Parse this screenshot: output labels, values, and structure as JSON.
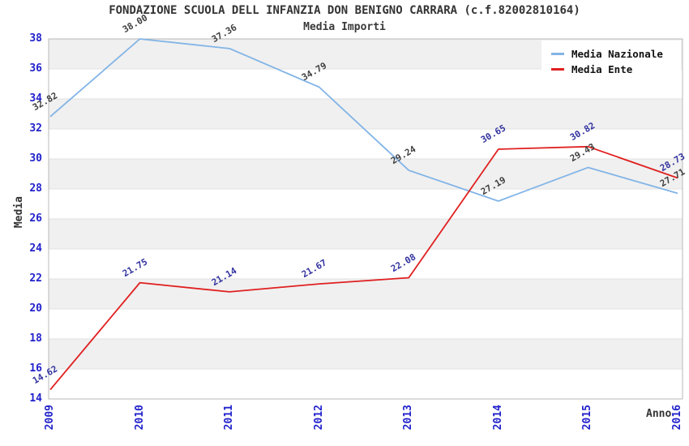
{
  "header": {
    "title": "FONDAZIONE SCUOLA DELL INFANZIA DON BENIGNO CARRARA (c.f.82002810164)",
    "subtitle": "Media Importi"
  },
  "colors": {
    "background": "#ffffff",
    "band": "#f0f0f0",
    "gridline": "#e2e2e2",
    "plot_border": "#b8b8b8",
    "axis_tick_label": "#2222cc",
    "series_nazionale": "#82b4e6",
    "series_ente": "#e02020",
    "label_nazionale": "#404040",
    "label_ente": "#3333a0"
  },
  "chart_data": {
    "type": "line",
    "title": "FONDAZIONE SCUOLA DELL INFANZIA DON BENIGNO CARRARA (c.f.82002810164)",
    "subtitle": "Media Importi",
    "xlabel": "Anno",
    "ylabel": "Media",
    "categories": [
      "2009",
      "2010",
      "2011",
      "2012",
      "2013",
      "2014",
      "2015",
      "2016"
    ],
    "series": [
      {
        "name": "Media Nazionale",
        "color": "#82b4e6",
        "label_color": "#404040",
        "values": [
          32.82,
          38.0,
          37.36,
          34.79,
          29.24,
          27.19,
          29.43,
          27.71
        ]
      },
      {
        "name": "Media Ente",
        "color": "#e02020",
        "label_color": "#3333a0",
        "values": [
          14.62,
          21.75,
          21.14,
          21.67,
          22.08,
          30.65,
          30.82,
          28.73
        ]
      }
    ],
    "ylim": [
      14,
      38
    ],
    "y_tick_step": 2,
    "y_ticks": [
      14,
      16,
      18,
      20,
      22,
      24,
      26,
      28,
      30,
      32,
      34,
      36,
      38
    ],
    "grid": "alternating-horizontal-bands",
    "band_pattern": "gray band from 38-36 then alternating every 2 units",
    "legend_position": "top-right",
    "data_labels": "shown, rotated -30deg, formatted to 2 decimals"
  }
}
